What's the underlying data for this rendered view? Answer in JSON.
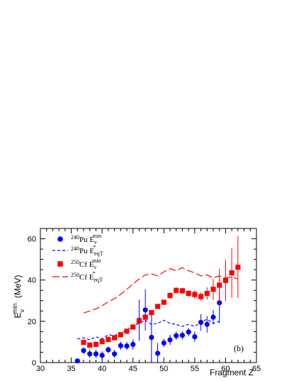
{
  "chart_data": {
    "type": "scatter",
    "xlabel": "Fragment Z",
    "ylabel": {
      "main": "E",
      "sub": "ν",
      "sup": "min",
      "unit": "(MeV)"
    },
    "xlim": [
      30,
      65
    ],
    "ylim": [
      0,
      65
    ],
    "xticks": [
      30,
      35,
      40,
      45,
      50,
      55,
      60,
      65
    ],
    "yticks": [
      0,
      20,
      40,
      60
    ],
    "panel_label": "(b)",
    "legend_position": "top-left",
    "series": [
      {
        "name": {
          "iso": "240",
          "elem": "Pu",
          "quantity": "E",
          "sub": "ν",
          "sup": "min"
        },
        "kind": "points-with-errorbars",
        "marker": "circle",
        "color": "#0000ff",
        "x": [
          36,
          37,
          38,
          39,
          40,
          41,
          42,
          43,
          44,
          45,
          46,
          47,
          48,
          49,
          50,
          51,
          52,
          53,
          54,
          55,
          56,
          57,
          58,
          59
        ],
        "y": [
          0.8,
          5.8,
          4.2,
          4.2,
          3.5,
          6.2,
          4.2,
          8.2,
          8.0,
          8.8,
          20.5,
          25.5,
          12.2,
          4.5,
          9.5,
          11.0,
          13.0,
          13.2,
          14.8,
          12.5,
          19.5,
          18.5,
          22.0,
          29.0
        ],
        "err": [
          1.0,
          1.5,
          2.0,
          2.0,
          2.0,
          1.5,
          2.0,
          2.0,
          2.0,
          2.5,
          10.0,
          10.0,
          12.0,
          5.0,
          2.0,
          2.5,
          2.0,
          2.0,
          2.0,
          2.5,
          4.0,
          4.0,
          3.5,
          10.0
        ]
      },
      {
        "name": {
          "iso": "240",
          "elem": "Pu",
          "quantity": "E",
          "sub": "eqT",
          "sup": "*"
        },
        "kind": "line",
        "linestyle": "dashed",
        "color": "#0000ff",
        "x": [
          36,
          37,
          38,
          39,
          40,
          41,
          42,
          43,
          44,
          45,
          46,
          47,
          48,
          49,
          50,
          51,
          52,
          53,
          54,
          55,
          56,
          57,
          58,
          59
        ],
        "y": [
          11.5,
          12.0,
          11.0,
          12.5,
          11.5,
          13.5,
          13.0,
          14.5,
          15.5,
          18.0,
          19.0,
          20.5,
          18.5,
          19.0,
          20.5,
          19.0,
          18.5,
          17.5,
          18.5,
          17.5,
          19.5,
          21.0,
          19.0,
          20.0
        ]
      },
      {
        "name": {
          "iso": "250",
          "elem": "Cf",
          "quantity": "E",
          "sub": "ν",
          "sup": "min"
        },
        "kind": "points-with-errorbars",
        "marker": "square",
        "color": "#ff0000",
        "x": [
          37,
          38,
          39,
          40,
          41,
          42,
          43,
          44,
          45,
          46,
          47,
          48,
          49,
          50,
          51,
          52,
          53,
          54,
          55,
          56,
          57,
          58,
          59,
          60,
          61,
          62
        ],
        "y": [
          9.8,
          8.5,
          8.8,
          10.2,
          11.2,
          12.0,
          13.5,
          15.2,
          17.2,
          20.2,
          22.0,
          24.2,
          27.2,
          29.2,
          32.5,
          35.0,
          34.8,
          33.5,
          33.0,
          32.0,
          33.5,
          35.5,
          37.5,
          39.8,
          43.5,
          46.2
        ],
        "err": [
          0.8,
          0.8,
          0.8,
          0.8,
          0.8,
          0.8,
          0.8,
          0.8,
          0.8,
          1.0,
          1.0,
          1.0,
          1.0,
          1.0,
          1.5,
          1.5,
          1.5,
          1.5,
          2.0,
          2.0,
          3.0,
          5.0,
          8.0,
          10.0,
          12.0,
          15.0
        ]
      },
      {
        "name": {
          "iso": "250",
          "elem": "Cf",
          "quantity": "E",
          "sub": "eqT",
          "sup": "*"
        },
        "kind": "line",
        "linestyle": "long-dash",
        "color": "#ff0000",
        "x": [
          37,
          38,
          39,
          40,
          41,
          42,
          43,
          44,
          45,
          46,
          47,
          48,
          49,
          50,
          51,
          52,
          53,
          54,
          55,
          56,
          57,
          58,
          59,
          60,
          61,
          62
        ],
        "y": [
          24.0,
          25.0,
          26.0,
          27.5,
          29.5,
          31.0,
          33.0,
          35.5,
          38.0,
          40.5,
          42.5,
          43.0,
          42.0,
          44.0,
          45.5,
          44.5,
          46.0,
          44.5,
          43.5,
          42.0,
          42.5,
          41.0,
          42.0,
          41.0,
          41.5,
          40.5
        ]
      }
    ]
  }
}
